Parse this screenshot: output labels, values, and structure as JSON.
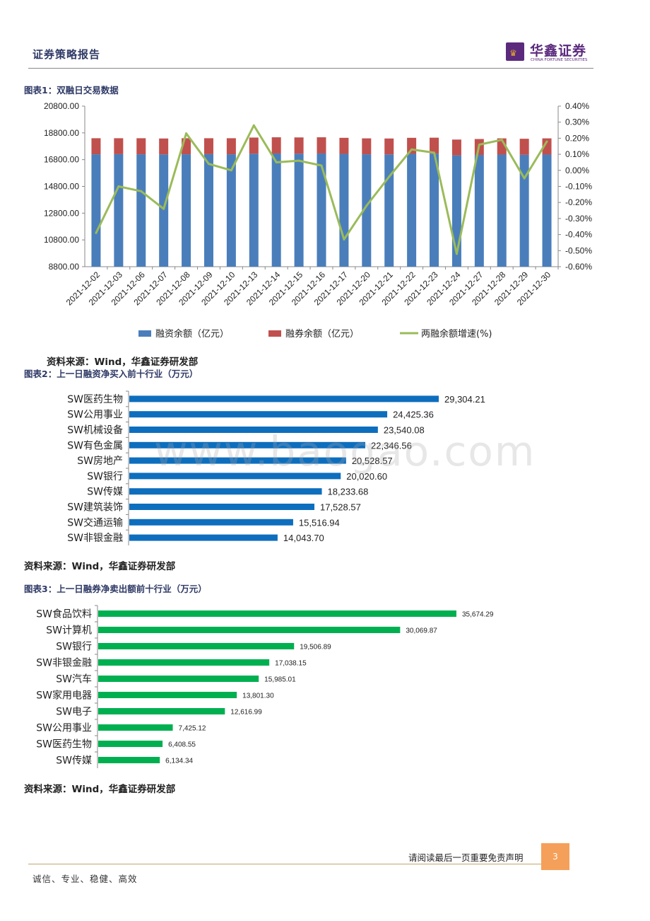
{
  "header": {
    "title": "证券策略报告",
    "logo_cn": "华鑫证券",
    "logo_en": "CHINA FORTUNE SECURITIES"
  },
  "watermark": "www.baogao.com",
  "footer": {
    "note": "请阅读最后一页重要免责声明",
    "page": "3",
    "motto": "诚信、专业、稳健、高效"
  },
  "colors": {
    "blue_bar": "#4a7ebb",
    "red_bar": "#c0504d",
    "green_line": "#9bbb59",
    "hbar_blue": "#0e6ebe",
    "hbar_green": "#00b050"
  },
  "chart_data": [
    {
      "type": "bar",
      "caption": "图表1：双融日交易数据",
      "source": "资料来源：Wind，华鑫证券研发部",
      "categories": [
        "2021-12-02",
        "2021-12-03",
        "2021-12-06",
        "2021-12-07",
        "2021-12-08",
        "2021-12-09",
        "2021-12-10",
        "2021-12-13",
        "2021-12-14",
        "2021-12-15",
        "2021-12-16",
        "2021-12-17",
        "2021-12-20",
        "2021-12-21",
        "2021-12-22",
        "2021-12-23",
        "2021-12-24",
        "2021-12-27",
        "2021-12-28",
        "2021-12-29",
        "2021-12-30"
      ],
      "series": [
        {
          "name": "融资余额（亿元）",
          "type": "stacked-bar",
          "values": [
            17200,
            17210,
            17200,
            17190,
            17200,
            17210,
            17200,
            17240,
            17260,
            17250,
            17260,
            17230,
            17200,
            17190,
            17230,
            17250,
            17120,
            17150,
            17180,
            17160,
            17180
          ]
        },
        {
          "name": "融券余额（亿元）",
          "type": "stacked-bar",
          "values": [
            1200,
            1190,
            1200,
            1190,
            1200,
            1190,
            1200,
            1210,
            1210,
            1210,
            1210,
            1200,
            1190,
            1190,
            1200,
            1190,
            1180,
            1190,
            1210,
            1200,
            1210
          ]
        },
        {
          "name": "两融余额增速(%)",
          "type": "line",
          "axis": "right",
          "values": [
            -0.39,
            -0.1,
            -0.13,
            -0.24,
            0.23,
            0.04,
            0.0,
            0.28,
            0.05,
            0.06,
            0.03,
            -0.43,
            -0.22,
            -0.04,
            0.13,
            0.11,
            -0.52,
            0.16,
            0.19,
            -0.05,
            0.18
          ]
        }
      ],
      "y_left": {
        "min": 8800,
        "max": 20800,
        "step": 2000,
        "tick_labels": [
          "8800.00",
          "10800.00",
          "12800.00",
          "14800.00",
          "16800.00",
          "18800.00",
          "20800.00"
        ]
      },
      "y_right": {
        "min": -0.6,
        "max": 0.4,
        "step": 0.1,
        "tick_labels": [
          "-0.60%",
          "-0.50%",
          "-0.40%",
          "-0.30%",
          "-0.20%",
          "-0.10%",
          "0.00%",
          "0.10%",
          "0.20%",
          "0.30%",
          "0.40%"
        ]
      },
      "legend_position": "bottom"
    },
    {
      "type": "bar",
      "orientation": "horizontal",
      "caption": "图表2：上一日融资净买入前十行业（万元）",
      "source": "资料来源：Wind，华鑫证券研发部",
      "categories": [
        "SW医药生物",
        "SW公用事业",
        "SW机械设备",
        "SW有色金属",
        "SW房地产",
        "SW银行",
        "SW传媒",
        "SW建筑装饰",
        "SW交通运输",
        "SW非银金融"
      ],
      "values": [
        29304.21,
        24425.36,
        23540.08,
        22346.56,
        20528.57,
        20020.6,
        18233.68,
        17528.57,
        15516.94,
        14043.7
      ],
      "value_labels": [
        "29,304.21",
        "24,425.36",
        "23,540.08",
        "22,346.56",
        "20,528.57",
        "20,020.60",
        "18,233.68",
        "17,528.57",
        "15,516.94",
        "14,043.70"
      ]
    },
    {
      "type": "bar",
      "orientation": "horizontal",
      "caption": "图表3：上一日融券净卖出额前十行业（万元）",
      "source": "资料来源：Wind，华鑫证券研发部",
      "categories": [
        "SW食品饮料",
        "SW计算机",
        "SW银行",
        "SW非银金融",
        "SW汽车",
        "SW家用电器",
        "SW电子",
        "SW公用事业",
        "SW医药生物",
        "SW传媒"
      ],
      "values": [
        35674.29,
        30069.87,
        19506.89,
        17038.15,
        15985.01,
        13801.3,
        12616.99,
        7425.12,
        6408.55,
        6134.34
      ],
      "value_labels": [
        "35,674.29",
        "30,069.87",
        "19,506.89",
        "17,038.15",
        "15,985.01",
        "13,801.30",
        "12,616.99",
        "7,425.12",
        "6,408.55",
        "6,134.34"
      ]
    }
  ]
}
